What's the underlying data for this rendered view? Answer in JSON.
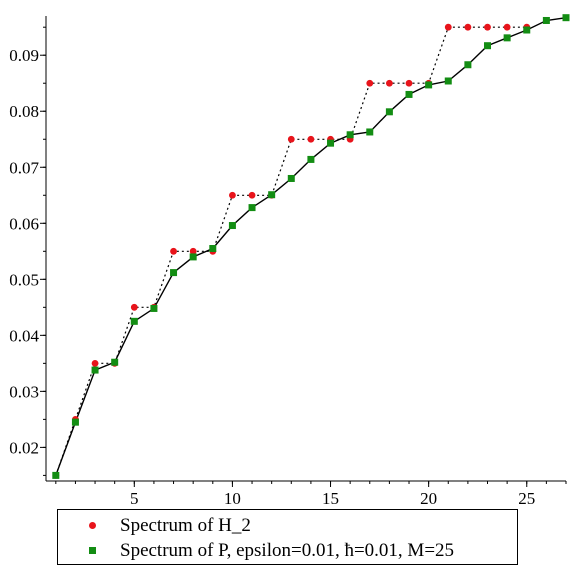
{
  "chart_data": {
    "type": "scatter",
    "xlim": [
      0.5,
      27
    ],
    "ylim": [
      0.014,
      0.097
    ],
    "x_ticks": [
      5,
      10,
      15,
      20,
      25
    ],
    "x_tick_labels": [
      "5",
      "10",
      "15",
      "20",
      "25"
    ],
    "y_ticks": [
      0.02,
      0.03,
      0.04,
      0.05,
      0.06,
      0.07,
      0.08,
      0.09
    ],
    "y_tick_labels": [
      "0.02",
      "0.03",
      "0.04",
      "0.05",
      "0.06",
      "0.07",
      "0.08",
      "0.09"
    ],
    "grid": false,
    "legend_placement": "bottom",
    "series": [
      {
        "name": "Spectrum of H_2",
        "color": "#e8141b",
        "marker": "circle",
        "line": "dotted",
        "x": [
          1,
          2,
          3,
          4,
          5,
          6,
          7,
          8,
          9,
          10,
          11,
          12,
          13,
          14,
          15,
          16,
          17,
          18,
          19,
          20,
          21,
          22,
          23,
          24,
          25
        ],
        "y": [
          0.015,
          0.025,
          0.035,
          0.035,
          0.045,
          0.045,
          0.055,
          0.055,
          0.055,
          0.065,
          0.065,
          0.065,
          0.075,
          0.075,
          0.075,
          0.075,
          0.085,
          0.085,
          0.085,
          0.085,
          0.095,
          0.095,
          0.095,
          0.095,
          0.095
        ]
      },
      {
        "name": "Spectrum of P, epsilon=0.01, ħ=0.01, M=25",
        "color": "#138d13",
        "marker": "square",
        "line": "solid",
        "x": [
          1,
          2,
          3,
          4,
          5,
          6,
          7,
          8,
          9,
          10,
          11,
          12,
          13,
          14,
          15,
          16,
          17,
          18,
          19,
          20,
          21,
          22,
          23,
          24,
          25,
          26,
          27
        ],
        "y": [
          0.015,
          0.0245,
          0.0338,
          0.0352,
          0.0425,
          0.0448,
          0.0512,
          0.054,
          0.0555,
          0.0596,
          0.0628,
          0.0651,
          0.068,
          0.0714,
          0.0743,
          0.0758,
          0.0763,
          0.0799,
          0.083,
          0.0847,
          0.0854,
          0.0883,
          0.0917,
          0.0931,
          0.0945,
          0.0962,
          0.0967
        ]
      }
    ]
  }
}
